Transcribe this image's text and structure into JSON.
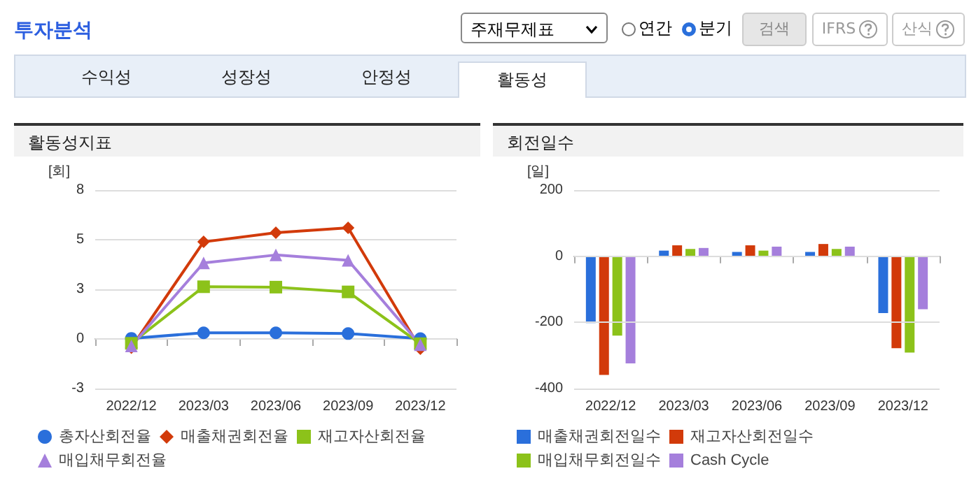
{
  "chart_data": [
    {
      "type": "other",
      "title": "투자분석",
      "annotations": [
        "주재무제표",
        "연간",
        "분기",
        "검색",
        "IFRS",
        "산식",
        "수익성",
        "성장성",
        "안정성",
        "활동성"
      ]
    },
    {
      "type": "line",
      "title": "활동성지표",
      "ylabel": "[회]",
      "categories": [
        "2022/12",
        "2023/03",
        "2023/06",
        "2023/09",
        "2023/12"
      ],
      "ylim": [
        -2.5,
        7.5
      ],
      "yticks": [
        {
          "value": -2.5,
          "label": "-3"
        },
        0,
        {
          "value": 2.5,
          "label": "3"
        },
        5,
        {
          "value": 7.5,
          "label": "8"
        }
      ],
      "grid": "y",
      "legend": "bottom",
      "series": [
        {
          "name": "총자산회전율",
          "color": "#2a6fdb",
          "marker": "circle",
          "values": [
            0.03,
            0.31,
            0.31,
            0.27,
            0.02
          ]
        },
        {
          "name": "매출채권회전율",
          "color": "#d23a0a",
          "marker": "diamond",
          "values": [
            -0.44,
            4.89,
            5.35,
            5.6,
            -0.49
          ]
        },
        {
          "name": "재고자산회전율",
          "color": "#8cc21a",
          "marker": "square",
          "values": [
            -0.22,
            2.63,
            2.61,
            2.37,
            -0.24
          ]
        },
        {
          "name": "매입채무회전율",
          "color": "#a57fdc",
          "marker": "triangle",
          "values": [
            -0.35,
            3.83,
            4.23,
            3.96,
            -0.29
          ]
        }
      ]
    },
    {
      "type": "bar",
      "title": "회전일수",
      "ylabel": "[일]",
      "categories": [
        "2022/12",
        "2023/03",
        "2023/06",
        "2023/09",
        "2023/12"
      ],
      "ylim": [
        -400,
        200
      ],
      "yticks": [
        -400,
        -200,
        0,
        200
      ],
      "grid": "y",
      "legend": "bottom",
      "series": [
        {
          "name": "매출채권회전일수",
          "color": "#2a6fdb",
          "values": [
            -202,
            17,
            13,
            13,
            -172
          ]
        },
        {
          "name": "재고자산회전일수",
          "color": "#d23a0a",
          "values": [
            -359,
            33,
            33,
            37,
            -278
          ]
        },
        {
          "name": "매입채무회전일수",
          "color": "#8cc21a",
          "values": [
            -240,
            22,
            17,
            22,
            -291
          ]
        },
        {
          "name": "Cash Cycle",
          "color": "#a57fdc",
          "values": [
            -324,
            25,
            29,
            29,
            -160
          ]
        }
      ]
    }
  ]
}
